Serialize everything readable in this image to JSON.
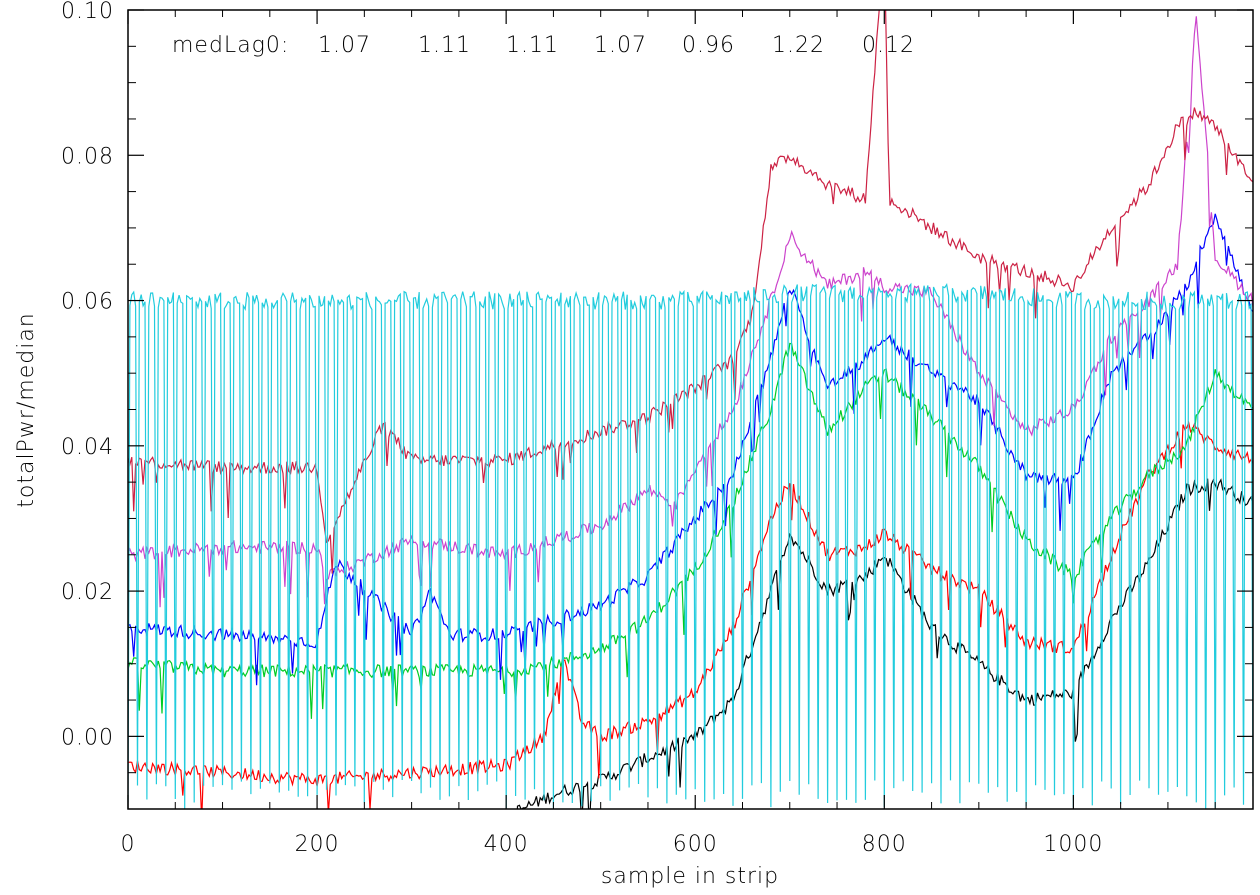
{
  "chart_data": {
    "type": "line",
    "title": "",
    "xlabel": "sample in strip",
    "ylabel": "totalPwr/median",
    "xlim": [
      0,
      1190
    ],
    "ylim": [
      -0.01,
      0.1
    ],
    "xticks": [
      0,
      200,
      400,
      600,
      800,
      1000
    ],
    "xtick_labels": [
      "0",
      "200",
      "400",
      "600",
      "800",
      "1000"
    ],
    "yticks": [
      0.0,
      0.02,
      0.04,
      0.06,
      0.08,
      0.1
    ],
    "ytick_labels": [
      "0.00",
      "0.02",
      "0.04",
      "0.06",
      "0.08",
      "0.10"
    ],
    "grid": false,
    "annotation": {
      "label": "medLag0:",
      "values": [
        "1.07",
        "1.11",
        "1.11",
        "1.07",
        "0.96",
        "1.22",
        "0.12"
      ]
    },
    "series": [
      {
        "color": "#000000",
        "x": [
          0,
          100,
          200,
          300,
          400,
          450,
          500,
          550,
          600,
          640,
          680,
          700,
          740,
          780,
          800,
          850,
          900,
          950,
          1000,
          1040,
          1080,
          1120,
          1150,
          1190
        ],
        "values": [
          -0.012,
          -0.012,
          -0.013,
          -0.012,
          -0.011,
          -0.008,
          -0.006,
          -0.003,
          0.0,
          0.005,
          0.02,
          0.028,
          0.02,
          0.022,
          0.025,
          0.015,
          0.01,
          0.005,
          0.006,
          0.016,
          0.024,
          0.034,
          0.035,
          0.032
        ]
      },
      {
        "color": "#ff0000",
        "x": [
          0,
          100,
          200,
          300,
          400,
          440,
          460,
          480,
          500,
          550,
          600,
          640,
          680,
          700,
          740,
          780,
          800,
          850,
          900,
          950,
          1000,
          1040,
          1080,
          1120,
          1150,
          1190
        ],
        "values": [
          -0.004,
          -0.005,
          -0.006,
          -0.005,
          -0.004,
          0.0,
          0.011,
          0.002,
          0.0,
          0.002,
          0.006,
          0.015,
          0.03,
          0.035,
          0.025,
          0.026,
          0.028,
          0.023,
          0.02,
          0.013,
          0.012,
          0.025,
          0.036,
          0.043,
          0.04,
          0.038
        ]
      },
      {
        "color": "#00cc22",
        "x": [
          0,
          100,
          200,
          300,
          400,
          450,
          500,
          550,
          600,
          640,
          680,
          700,
          740,
          780,
          800,
          850,
          900,
          950,
          1000,
          1040,
          1080,
          1120,
          1150,
          1190
        ],
        "values": [
          0.01,
          0.009,
          0.009,
          0.009,
          0.009,
          0.01,
          0.012,
          0.016,
          0.023,
          0.032,
          0.045,
          0.054,
          0.042,
          0.048,
          0.05,
          0.044,
          0.037,
          0.027,
          0.022,
          0.03,
          0.036,
          0.04,
          0.05,
          0.045
        ]
      },
      {
        "color": "#0000ff",
        "x": [
          0,
          100,
          200,
          220,
          300,
          320,
          340,
          400,
          450,
          500,
          550,
          600,
          640,
          680,
          700,
          740,
          780,
          800,
          850,
          880,
          900,
          950,
          1000,
          1040,
          1080,
          1120,
          1150,
          1190
        ],
        "values": [
          0.015,
          0.014,
          0.013,
          0.024,
          0.014,
          0.02,
          0.014,
          0.014,
          0.016,
          0.018,
          0.022,
          0.03,
          0.036,
          0.052,
          0.062,
          0.048,
          0.052,
          0.055,
          0.05,
          0.048,
          0.046,
          0.036,
          0.035,
          0.05,
          0.055,
          0.062,
          0.072,
          0.058
        ]
      },
      {
        "color": "#cc44cc",
        "x": [
          0,
          100,
          200,
          210,
          300,
          400,
          450,
          500,
          550,
          580,
          600,
          640,
          680,
          700,
          740,
          780,
          800,
          850,
          900,
          950,
          1000,
          1040,
          1080,
          1110,
          1130,
          1150,
          1190
        ],
        "values": [
          0.025,
          0.026,
          0.026,
          0.022,
          0.027,
          0.025,
          0.027,
          0.029,
          0.034,
          0.032,
          0.037,
          0.045,
          0.06,
          0.069,
          0.062,
          0.064,
          0.062,
          0.061,
          0.05,
          0.042,
          0.045,
          0.055,
          0.06,
          0.065,
          0.1,
          0.066,
          0.06
        ]
      },
      {
        "color": "#cc2244",
        "x": [
          0,
          100,
          200,
          210,
          270,
          300,
          400,
          450,
          500,
          550,
          600,
          640,
          660,
          680,
          700,
          740,
          780,
          800,
          805,
          850,
          900,
          950,
          1000,
          1040,
          1080,
          1110,
          1130,
          1150,
          1190
        ],
        "values": [
          0.038,
          0.037,
          0.037,
          0.027,
          0.043,
          0.038,
          0.038,
          0.04,
          0.042,
          0.044,
          0.048,
          0.052,
          0.058,
          0.078,
          0.08,
          0.076,
          0.074,
          0.11,
          0.074,
          0.07,
          0.066,
          0.064,
          0.062,
          0.07,
          0.076,
          0.084,
          0.086,
          0.084,
          0.076
        ]
      },
      {
        "color": "#22ccdd",
        "x": [
          0,
          150,
          300,
          450,
          600,
          700,
          800,
          900,
          1000,
          1100,
          1190
        ],
        "values": [
          0.06,
          0.06,
          0.06,
          0.06,
          0.06,
          0.061,
          0.061,
          0.061,
          0.06,
          0.06,
          0.06
        ],
        "dips": {
          "period": 10,
          "low": -0.01
        }
      }
    ]
  }
}
